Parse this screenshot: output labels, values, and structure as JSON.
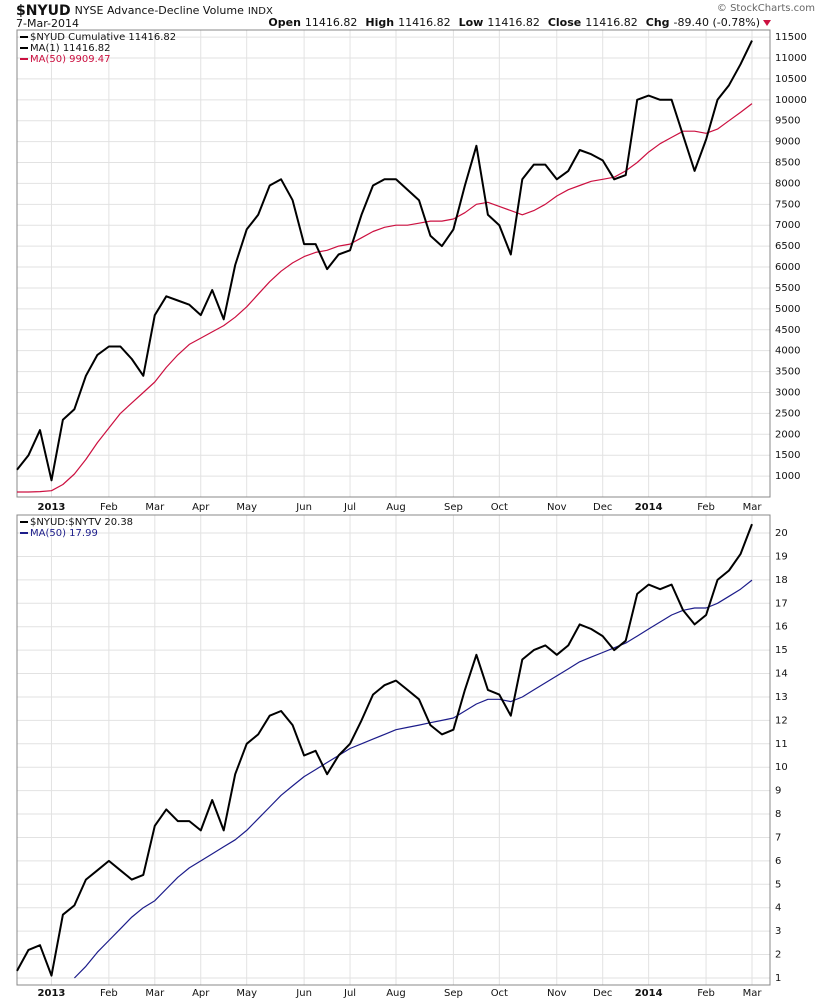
{
  "header": {
    "symbol": "$NYUD",
    "name": "NYSE Advance-Decline Volume",
    "exchange": "INDX",
    "date": "7-Mar-2014",
    "credit": "© StockCharts.com",
    "quote": [
      {
        "label": "Open",
        "value": "11416.82"
      },
      {
        "label": "High",
        "value": "11416.82"
      },
      {
        "label": "Low",
        "value": "11416.82"
      },
      {
        "label": "Close",
        "value": "11416.82"
      },
      {
        "label": "Chg",
        "value": "-89.40 (-0.78%)"
      }
    ]
  },
  "chart_data": [
    {
      "type": "line",
      "legend_title": "$NYUD Cumulative 11416.82",
      "categories": [
        null,
        null,
        null,
        "2013",
        null,
        null,
        null,
        null,
        "Feb",
        null,
        null,
        null,
        "Mar",
        null,
        null,
        null,
        "Apr",
        null,
        null,
        null,
        "May",
        null,
        null,
        null,
        null,
        "Jun",
        null,
        null,
        null,
        "Jul",
        null,
        null,
        null,
        "Aug",
        null,
        null,
        null,
        null,
        "Sep",
        null,
        null,
        null,
        "Oct",
        null,
        null,
        null,
        null,
        "Nov",
        null,
        null,
        null,
        "Dec",
        null,
        null,
        null,
        "2014",
        null,
        null,
        null,
        null,
        "Feb",
        null,
        null,
        null,
        "Mar"
      ],
      "series": [
        {
          "name": "MA(1) 11416.82",
          "color": "#000000",
          "values": [
            1150,
            1500,
            2100,
            900,
            2350,
            2600,
            3400,
            3900,
            4100,
            4100,
            3800,
            3400,
            4850,
            5300,
            5200,
            5100,
            4850,
            5450,
            4750,
            6050,
            6900,
            7250,
            7950,
            8100,
            7600,
            6550,
            6550,
            5950,
            6300,
            6400,
            7250,
            7950,
            8100,
            8100,
            7850,
            7600,
            6750,
            6500,
            6900,
            7950,
            8900,
            7250,
            7000,
            6300,
            8100,
            8450,
            8450,
            8100,
            8300,
            8800,
            8700,
            8550,
            8100,
            8200,
            10000,
            10100,
            10000,
            10000,
            9150,
            8300,
            9050,
            10000,
            10350,
            10850,
            11416.82
          ]
        },
        {
          "name": "MA(50) 9909.47",
          "color": "#cc1040",
          "values": [
            620,
            620,
            630,
            650,
            800,
            1050,
            1400,
            1800,
            2150,
            2500,
            2750,
            3000,
            3250,
            3600,
            3900,
            4150,
            4300,
            4450,
            4600,
            4800,
            5050,
            5350,
            5650,
            5900,
            6100,
            6250,
            6350,
            6400,
            6500,
            6550,
            6700,
            6850,
            6950,
            7000,
            7000,
            7050,
            7100,
            7100,
            7150,
            7300,
            7500,
            7550,
            7450,
            7350,
            7250,
            7350,
            7500,
            7700,
            7850,
            7950,
            8050,
            8100,
            8150,
            8300,
            8500,
            8750,
            8950,
            9100,
            9250,
            9250,
            9200,
            9300,
            9500,
            9700,
            9909.47
          ]
        }
      ],
      "ylim": [
        500,
        11670
      ],
      "yticks": [
        1000,
        1500,
        2000,
        2500,
        3000,
        3500,
        4000,
        4500,
        5000,
        5500,
        6000,
        6500,
        7000,
        7500,
        8000,
        8500,
        9000,
        9500,
        10000,
        10500,
        11000,
        11500
      ],
      "grid": true
    },
    {
      "type": "line",
      "categories": [
        null,
        null,
        null,
        "2013",
        null,
        null,
        null,
        null,
        "Feb",
        null,
        null,
        null,
        "Mar",
        null,
        null,
        null,
        "Apr",
        null,
        null,
        null,
        "May",
        null,
        null,
        null,
        null,
        "Jun",
        null,
        null,
        null,
        "Jul",
        null,
        null,
        null,
        "Aug",
        null,
        null,
        null,
        null,
        "Sep",
        null,
        null,
        null,
        "Oct",
        null,
        null,
        null,
        null,
        "Nov",
        null,
        null,
        null,
        "Dec",
        null,
        null,
        null,
        "2014",
        null,
        null,
        null,
        null,
        "Feb",
        null,
        null,
        null,
        "Mar"
      ],
      "series": [
        {
          "name": "$NYUD:$NYTV 20.38",
          "color": "#000000",
          "values": [
            1.3,
            2.2,
            2.4,
            1.1,
            3.7,
            4.1,
            5.2,
            5.6,
            6.0,
            5.6,
            5.2,
            5.4,
            7.5,
            8.2,
            7.7,
            7.7,
            7.3,
            8.6,
            7.3,
            9.7,
            11.0,
            11.4,
            12.2,
            12.4,
            11.8,
            10.5,
            10.7,
            9.7,
            10.5,
            11.0,
            12.0,
            13.1,
            13.5,
            13.7,
            13.3,
            12.9,
            11.8,
            11.4,
            11.6,
            13.3,
            14.8,
            13.3,
            13.1,
            12.2,
            14.6,
            15.0,
            15.2,
            14.8,
            15.2,
            16.1,
            15.9,
            15.6,
            15.0,
            15.4,
            17.4,
            17.8,
            17.6,
            17.8,
            16.7,
            16.1,
            16.5,
            18.0,
            18.4,
            19.1,
            20.38
          ]
        },
        {
          "name": "MA(50) 17.99",
          "color": "#1c1c8a",
          "values": [
            null,
            null,
            null,
            null,
            null,
            1.0,
            1.5,
            2.1,
            2.6,
            3.1,
            3.6,
            4.0,
            4.3,
            4.8,
            5.3,
            5.7,
            6.0,
            6.3,
            6.6,
            6.9,
            7.3,
            7.8,
            8.3,
            8.8,
            9.2,
            9.6,
            9.9,
            10.2,
            10.5,
            10.8,
            11.0,
            11.2,
            11.4,
            11.6,
            11.7,
            11.8,
            11.9,
            12.0,
            12.1,
            12.4,
            12.7,
            12.9,
            12.9,
            12.8,
            13.0,
            13.3,
            13.6,
            13.9,
            14.2,
            14.5,
            14.7,
            14.9,
            15.1,
            15.3,
            15.6,
            15.9,
            16.2,
            16.5,
            16.7,
            16.8,
            16.8,
            17.0,
            17.3,
            17.6,
            17.99
          ]
        }
      ],
      "ylim": [
        0.7,
        20.77
      ],
      "yticks": [
        1,
        2,
        3,
        4,
        5,
        6,
        7,
        8,
        9,
        10,
        11,
        12,
        13,
        14,
        15,
        16,
        17,
        18,
        19,
        20
      ],
      "grid": true
    }
  ]
}
